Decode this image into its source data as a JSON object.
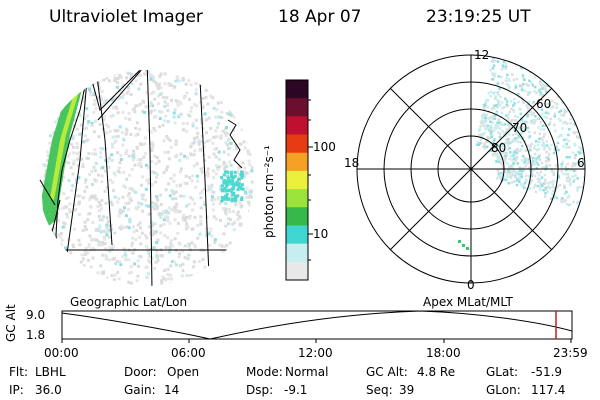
{
  "header": {
    "title": "Ultraviolet Imager",
    "date": "18 Apr 07",
    "time": "23:19:25 UT"
  },
  "geo_map": {
    "caption": "Geographic Lat/Lon"
  },
  "colorbar": {
    "unit_label": "photon cm⁻²s⁻¹",
    "tick_labels": [
      "100",
      "10"
    ],
    "scale": "log",
    "colors": [
      "#e8e8e8",
      "#c6eef0",
      "#3fd6d2",
      "#36b84a",
      "#9be23b",
      "#eaf03c",
      "#f7a124",
      "#e63a12",
      "#c01030",
      "#6c0f2f",
      "#2c0624"
    ]
  },
  "polar_plot": {
    "caption": "Apex MLat/MLT",
    "mlt_labels": {
      "top": "12",
      "left": "18",
      "right": "6",
      "bottom": "0"
    },
    "lat_labels": [
      "60",
      "70",
      "80"
    ]
  },
  "altitude_plot": {
    "ylabel": "GC Alt",
    "y_ticks": [
      "9.0",
      "1.8"
    ],
    "x_ticks": [
      "00:00",
      "06:00",
      "12:00",
      "18:00",
      "23:59"
    ],
    "marker_color": "#c81e1e"
  },
  "info": {
    "row1": [
      {
        "label": "Flt:",
        "value": "LBHL"
      },
      {
        "label": "Door:",
        "value": "Open"
      },
      {
        "label": "Mode:",
        "value": "Normal"
      },
      {
        "label": "GC Alt:",
        "value": "4.8 Re"
      },
      {
        "label": "GLat:",
        "value": "-51.9"
      }
    ],
    "row2": [
      {
        "label": "IP:",
        "value": "36.0"
      },
      {
        "label": "Gain:",
        "value": "14"
      },
      {
        "label": "Dsp:",
        "value": "-9.1"
      },
      {
        "label": "Seq:",
        "value": "39"
      },
      {
        "label": "GLon:",
        "value": "117.4"
      }
    ]
  }
}
